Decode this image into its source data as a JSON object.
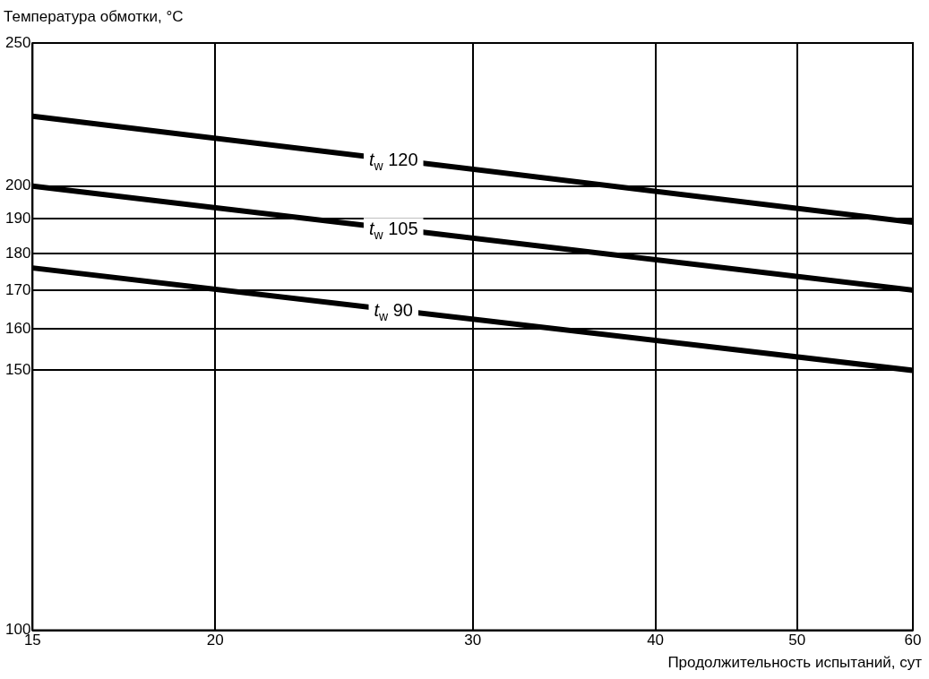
{
  "chart_data": {
    "type": "line",
    "xlabel": "Продолжительность испытаний, сут",
    "ylabel": "Температура обмотки, °C",
    "x": [
      15,
      60
    ],
    "series": [
      {
        "name": "t$_{w}$ 120",
        "values": [
          223,
          189
        ],
        "color": "#000000"
      },
      {
        "name": "t$_{w}$ 105",
        "values": [
          200,
          170
        ],
        "color": "#000000"
      },
      {
        "name": "t$_{w}$ 90",
        "values": [
          176,
          150
        ],
        "color": "#000000"
      }
    ],
    "log": "xy",
    "xlim": [
      15,
      60
    ],
    "xticks": [
      15,
      20,
      30,
      40,
      50,
      60
    ],
    "ylim": [
      100,
      250
    ],
    "yticks": [
      100,
      150,
      160,
      170,
      180,
      190,
      200,
      250
    ],
    "grid": true,
    "legend": false,
    "marker": "none",
    "line_style": "solid"
  }
}
